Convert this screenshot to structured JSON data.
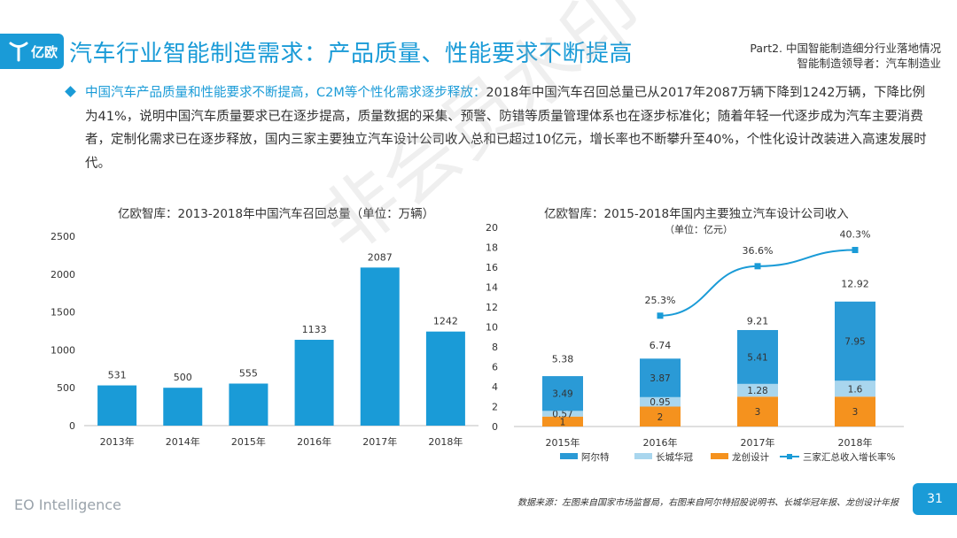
{
  "header": {
    "logo_text": "亿欧",
    "title": "汽车行业智能制造需求：产品质量、性能要求不断提高",
    "part_line1": "Part2. 中国智能制造细分行业落地情况",
    "part_line2": "智能制造领导者：汽车制造业"
  },
  "bullet": {
    "highlight": "中国汽车产品质量和性能要求不断提高，C2M等个性化需求逐步释放：",
    "body": "2018年中国汽车召回总量已从2017年2087万辆下降到1242万辆，下降比例为41%，说明中国汽车质量要求已在逐步提高，质量数据的采集、预警、防错等质量管理体系也在逐步标准化；随着年轻一代逐步成为汽车主要消费者，定制化需求已在逐步释放，国内三家主要独立汽车设计公司收入总和已超过10亿元，增长率也不断攀升至40%，个性化设计改装进入高速发展时代。"
  },
  "watermark": "非会员水印",
  "footer": {
    "brand": "EO Intelligence",
    "source": "数据来源：左图来自国家市场监督局，右图来自阿尔特招股说明书、长城华冠年报、龙创设计年报",
    "page": "31"
  },
  "chart_data": [
    {
      "type": "bar",
      "title": "亿欧智库：2013-2018年中国汽车召回总量（单位：万辆）",
      "categories": [
        "2013年",
        "2014年",
        "2015年",
        "2016年",
        "2017年",
        "2018年"
      ],
      "values": [
        531,
        500,
        555,
        1133,
        2087,
        1242
      ],
      "ylim": [
        0,
        2500
      ],
      "yticks": [
        0,
        500,
        1000,
        1500,
        2000,
        2500
      ],
      "color": "#1a9bd7",
      "grid": false
    },
    {
      "type": "bar",
      "stacked": true,
      "title": "亿欧智库：2015-2018年国内主要独立汽车设计公司收入",
      "subtitle": "（单位：亿元）",
      "categories": [
        "2015年",
        "2016年",
        "2017年",
        "2018年"
      ],
      "series": [
        {
          "name": "龙创设计",
          "values": [
            1,
            2,
            3,
            3
          ],
          "color": "#f5921e"
        },
        {
          "name": "长城华冠",
          "values": [
            0.57,
            0.95,
            1.28,
            1.6
          ],
          "color": "#a9d6ee"
        },
        {
          "name": "阿尔特",
          "values": [
            3.49,
            3.87,
            5.41,
            7.95
          ],
          "color": "#2a9ad6"
        }
      ],
      "totals": [
        5.38,
        6.74,
        9.21,
        12.92
      ],
      "total_labels": [
        "5.38",
        "6.74",
        "9.21",
        "12.92"
      ],
      "line": {
        "name": "三家汇总收入增长率%",
        "categories": [
          "2016年",
          "2017年",
          "2018年"
        ],
        "values": [
          25.3,
          36.6,
          40.3
        ],
        "labels": [
          "25.3%",
          "36.6%",
          "40.3%"
        ],
        "color": "#1a9bd7"
      },
      "legend": [
        "阿尔特",
        "长城华冠",
        "龙创设计",
        "三家汇总收入增长率%"
      ],
      "legend_position": "bottom",
      "ylim": [
        0,
        20
      ],
      "yticks": [
        0,
        2,
        4,
        6,
        8,
        10,
        12,
        14,
        16,
        18,
        20
      ],
      "grid": false
    }
  ]
}
